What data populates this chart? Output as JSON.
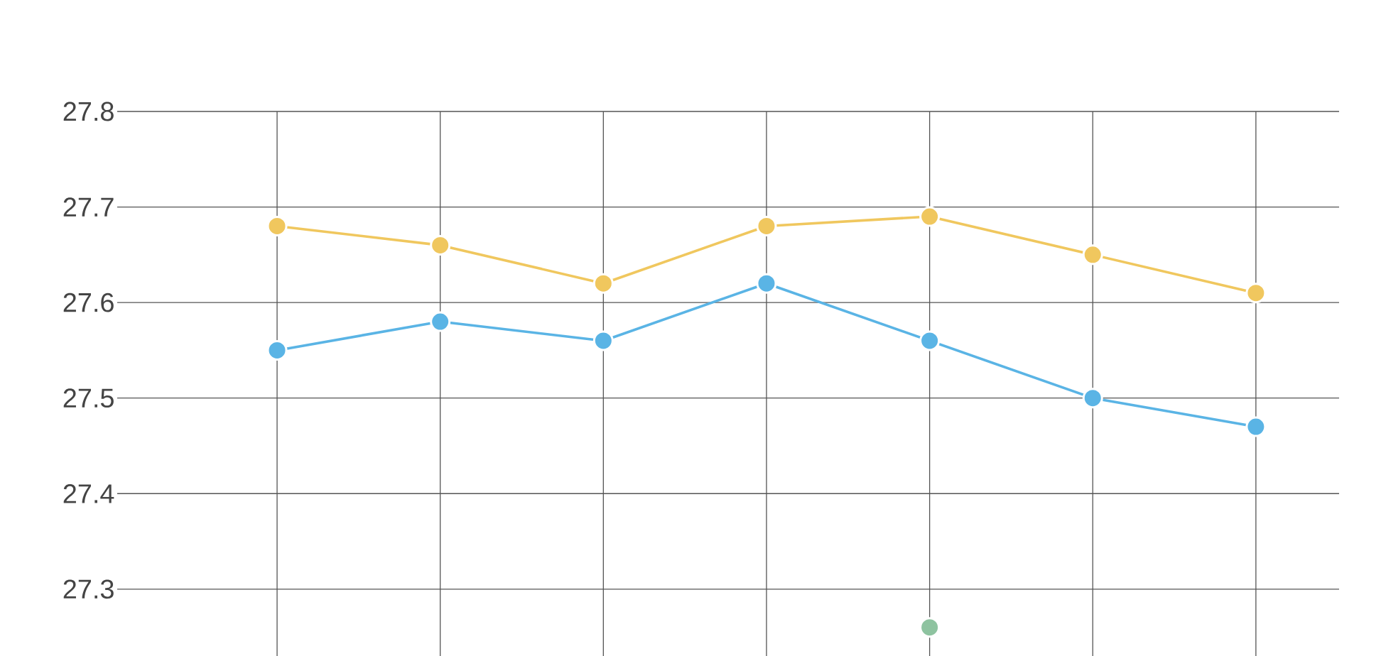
{
  "chart_data": {
    "type": "line",
    "categories": [
      null,
      null,
      null,
      null,
      null,
      null,
      null
    ],
    "series": [
      {
        "color": "#f0c75e",
        "values": [
          27.68,
          27.66,
          27.62,
          27.68,
          27.69,
          27.65,
          27.61
        ]
      },
      {
        "color": "#5ab4e5",
        "values": [
          27.55,
          27.58,
          27.56,
          27.62,
          27.56,
          27.5,
          27.47
        ]
      },
      {
        "color": "#8ec3a0",
        "values": [
          null,
          null,
          null,
          null,
          27.26,
          null,
          null
        ]
      }
    ],
    "ylim": [
      27.23,
      27.8
    ],
    "yticks": [
      27.3,
      27.4,
      27.5,
      27.6,
      27.7,
      27.8
    ],
    "grid": true,
    "marker": "circle",
    "tick_labels": "y"
  }
}
